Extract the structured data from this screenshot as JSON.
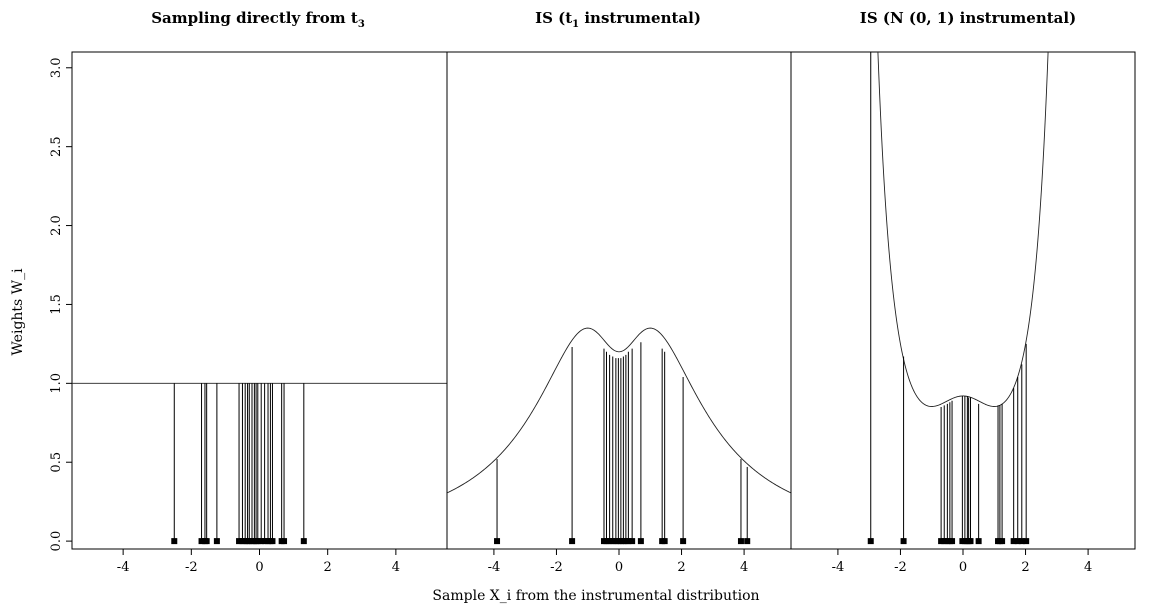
{
  "xlabel": "Sample X_i from the instrumental distribution",
  "ylabel": "Weights W_i",
  "chart_data": [
    {
      "type": "scatter",
      "title": {
        "main": "Sampling directly from t",
        "subscript": "3"
      },
      "xlim": [
        -5.5,
        5.5
      ],
      "ylim": [
        -0.05,
        3.1
      ],
      "xticks": [
        -4,
        -2,
        0,
        2,
        4
      ],
      "yticks": [
        0.0,
        0.5,
        1.0,
        1.5,
        2.0,
        2.5,
        3.0
      ],
      "curve": "flat",
      "samples": [
        -2.5,
        -1.7,
        -1.6,
        -1.55,
        -1.25,
        -0.6,
        -0.5,
        -0.42,
        -0.35,
        -0.3,
        -0.22,
        -0.15,
        -0.1,
        -0.05,
        0.05,
        0.15,
        0.25,
        0.32,
        0.38,
        0.65,
        0.72,
        1.3
      ],
      "weights": [
        1,
        1,
        1,
        1,
        1,
        1,
        1,
        1,
        1,
        1,
        1,
        1,
        1,
        1,
        1,
        1,
        1,
        1,
        1,
        1,
        1,
        1
      ]
    },
    {
      "type": "scatter",
      "title": {
        "main": "IS (t",
        "subscript": "1",
        "suffix": " instrumental)"
      },
      "xlim": [
        -5.5,
        5.5
      ],
      "ylim": [
        -0.05,
        3.1
      ],
      "xticks": [
        -4,
        -2,
        0,
        2,
        4
      ],
      "curve": "t3_over_t1",
      "samples": [
        -3.9,
        -1.5,
        -0.48,
        -0.4,
        -0.3,
        -0.2,
        -0.1,
        -0.02,
        0.06,
        0.14,
        0.22,
        0.3,
        0.42,
        0.7,
        1.38,
        1.46,
        2.05,
        3.9,
        4.1
      ],
      "weights": [
        0.52,
        1.23,
        1.22,
        1.2,
        1.18,
        1.17,
        1.16,
        1.16,
        1.16,
        1.17,
        1.18,
        1.2,
        1.22,
        1.26,
        1.22,
        1.2,
        1.04,
        0.52,
        0.47
      ]
    },
    {
      "type": "scatter",
      "title": {
        "main": "IS (N (0, 1) instrumental)"
      },
      "xlim": [
        -5.5,
        5.5
      ],
      "ylim": [
        -0.05,
        3.1
      ],
      "xticks": [
        -4,
        -2,
        0,
        2,
        4
      ],
      "curve": "t3_over_normal",
      "samples": [
        -2.95,
        -1.9,
        -0.7,
        -0.6,
        -0.5,
        -0.42,
        -0.35,
        -0.02,
        0.06,
        0.14,
        0.18,
        0.24,
        0.5,
        1.12,
        1.18,
        1.25,
        1.62,
        1.75,
        1.88,
        2.02
      ],
      "weights": [
        3.1,
        1.17,
        0.85,
        0.86,
        0.87,
        0.88,
        0.89,
        0.92,
        0.92,
        0.92,
        0.91,
        0.91,
        0.87,
        0.86,
        0.86,
        0.87,
        0.97,
        1.04,
        1.12,
        1.25
      ]
    }
  ]
}
